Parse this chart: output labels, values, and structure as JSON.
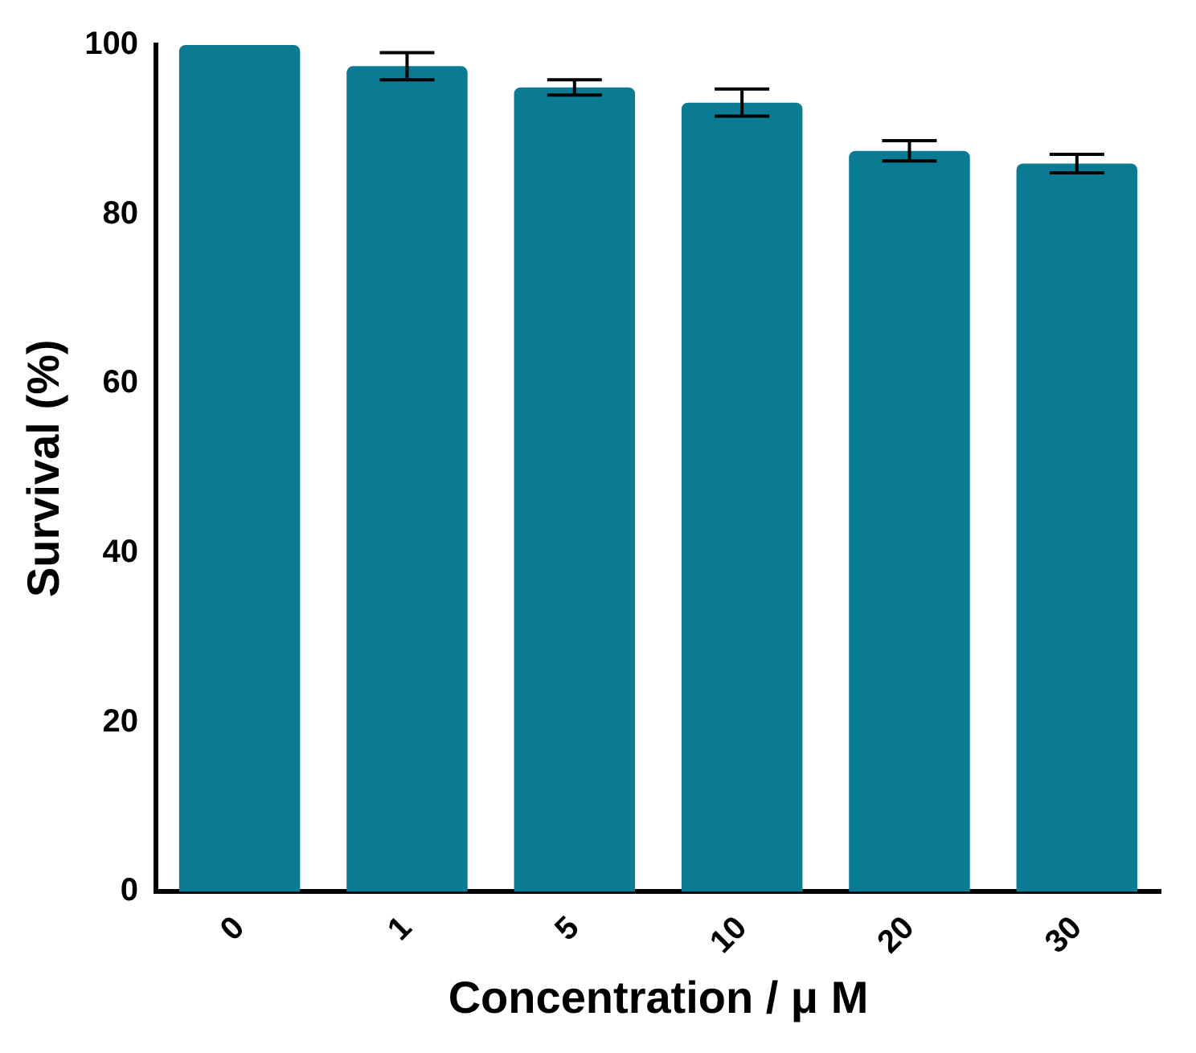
{
  "chart_data": {
    "type": "bar",
    "xlabel": "Concentration / μ M",
    "ylabel": "Survival (%)",
    "categories": [
      "0",
      "1",
      "5",
      "10",
      "20",
      "30"
    ],
    "values": [
      100,
      97.5,
      95,
      93.2,
      87.5,
      86
    ],
    "errors": [
      null,
      1.6,
      0.9,
      1.6,
      1.2,
      1.1
    ],
    "color": "#0b7b93",
    "ylim": [
      0,
      100
    ],
    "yticks": [
      0,
      20,
      40,
      60,
      80,
      100
    ],
    "grid": false,
    "legend": false
  }
}
